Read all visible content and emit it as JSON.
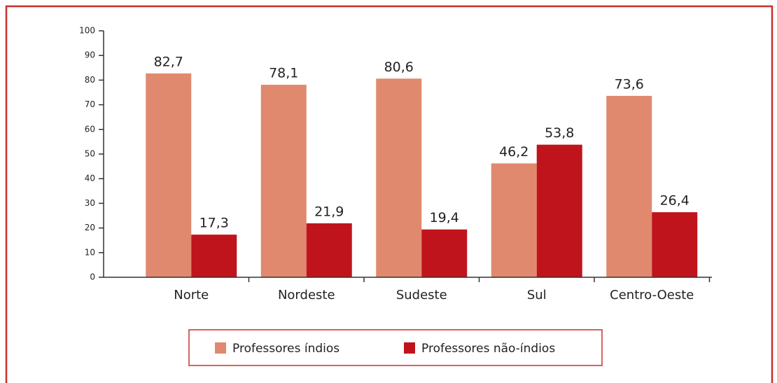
{
  "chart_data": {
    "type": "bar",
    "categories": [
      "Norte",
      "Nordeste",
      "Sudeste",
      "Sul",
      "Centro-Oeste"
    ],
    "series": [
      {
        "name": "Professores índios",
        "color": "#e0896e",
        "values": [
          82.7,
          78.1,
          80.6,
          46.2,
          73.6
        ],
        "value_labels": [
          "82,7",
          "78,1",
          "80,6",
          "46,2",
          "73,6"
        ]
      },
      {
        "name": "Professores não-índios",
        "color": "#c0141c",
        "values": [
          17.3,
          21.9,
          19.4,
          53.8,
          26.4
        ],
        "value_labels": [
          "17,3",
          "21,9",
          "19,4",
          "53,8",
          "26,4"
        ]
      }
    ],
    "ylim": [
      0,
      100
    ],
    "yticks": [
      0,
      10,
      20,
      30,
      40,
      50,
      60,
      70,
      80,
      90,
      100
    ],
    "grid": false,
    "legend": "bottom"
  }
}
